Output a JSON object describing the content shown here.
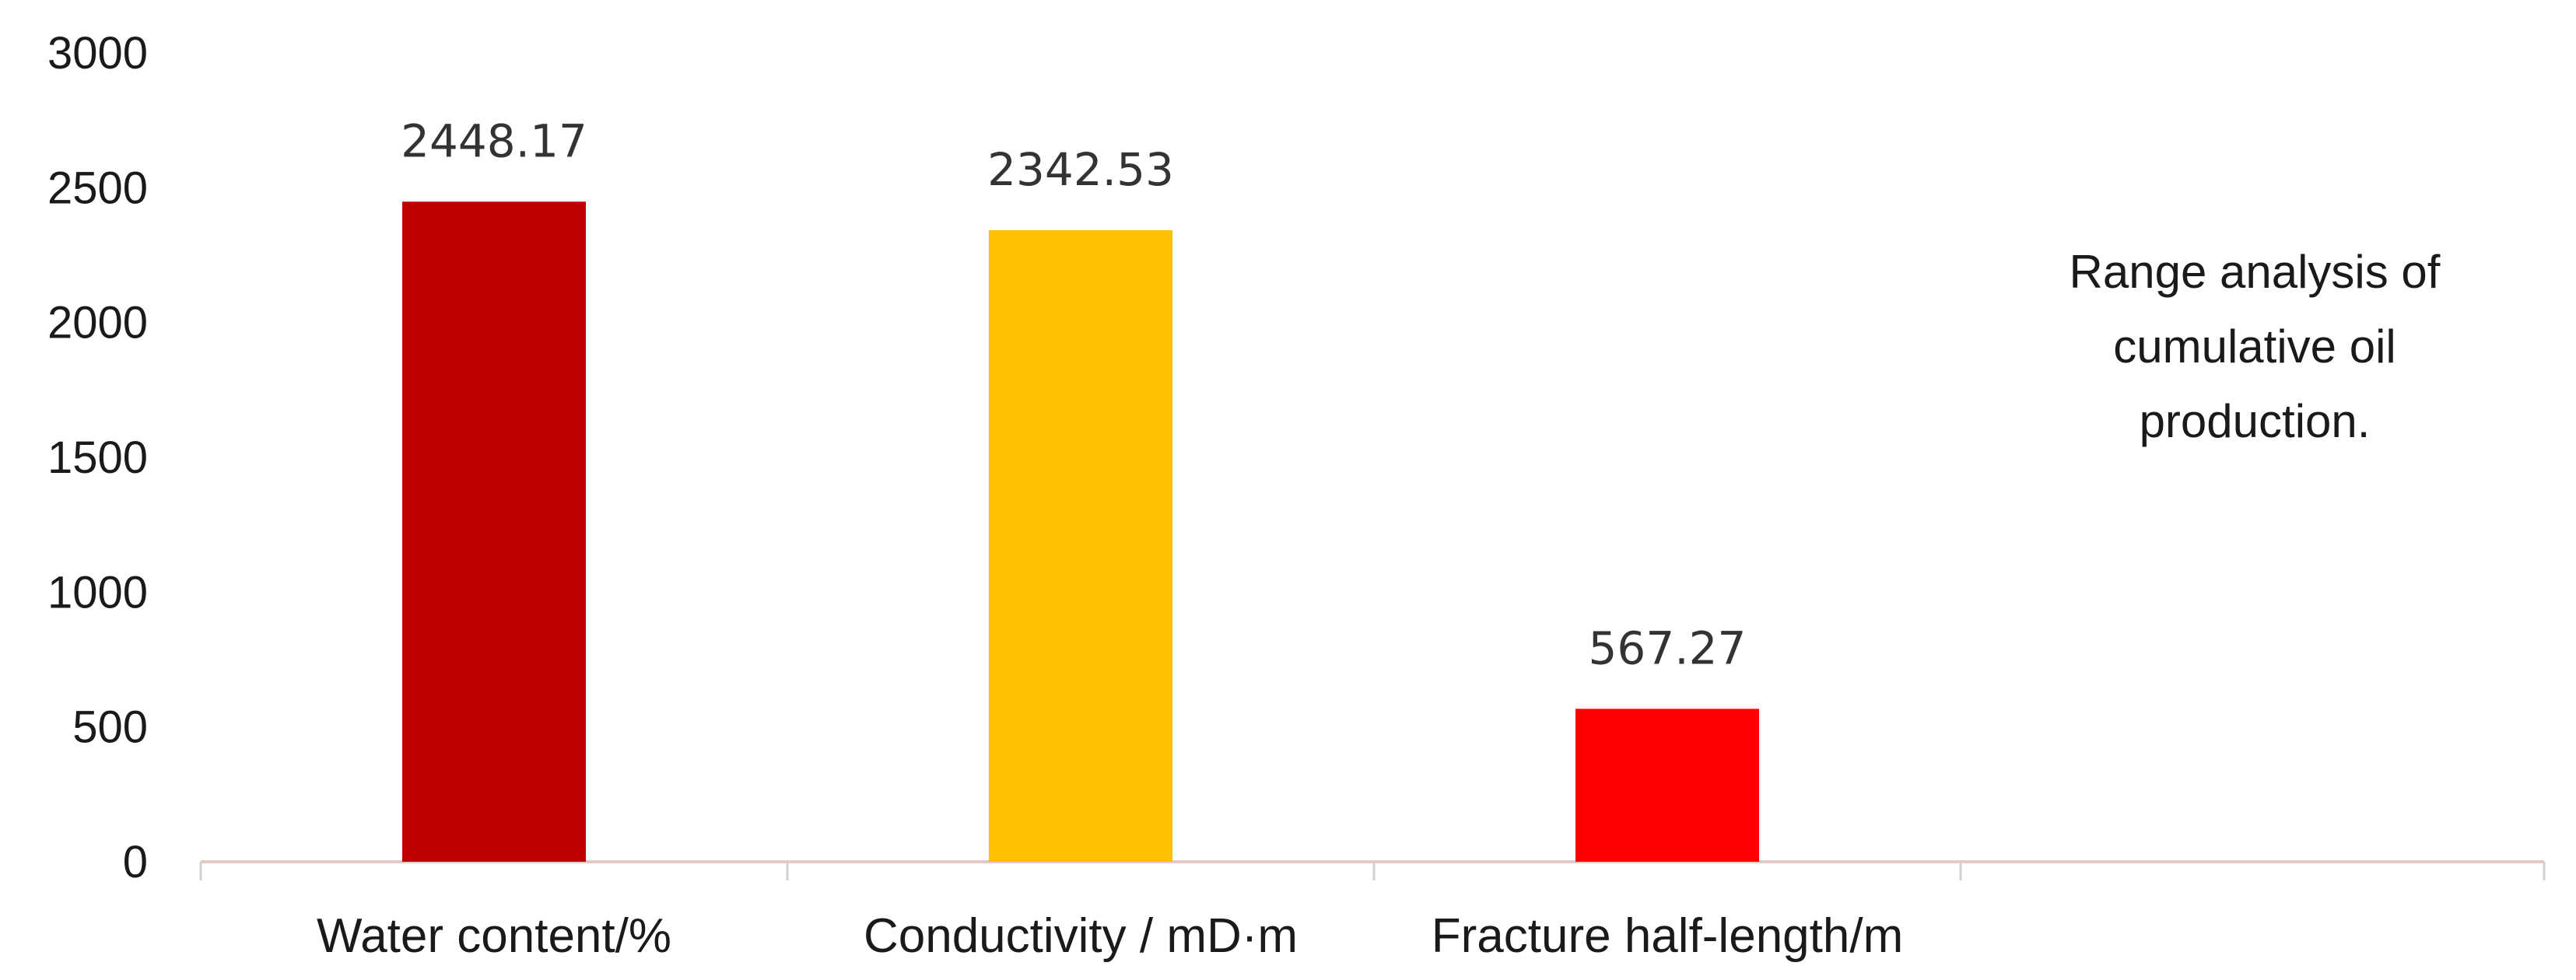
{
  "chart_data": {
    "type": "bar",
    "categories": [
      "Water content/%",
      "Conductivity / mD·m",
      "Fracture half-length/m"
    ],
    "values": [
      2448.17,
      2342.53,
      567.27
    ],
    "data_labels": [
      "2448.17",
      "2342.53",
      "567.27"
    ],
    "colors": [
      "#C00000",
      "#FFC000",
      "#FF0000"
    ],
    "ylim": [
      0,
      3000
    ],
    "yticks": [
      "0",
      "500",
      "1000",
      "1500",
      "2000",
      "2500",
      "3000"
    ],
    "xlabel": "",
    "ylabel": "",
    "grid": false,
    "annotation_lines": [
      "Range analysis of",
      "cumulative oil",
      "production."
    ]
  }
}
